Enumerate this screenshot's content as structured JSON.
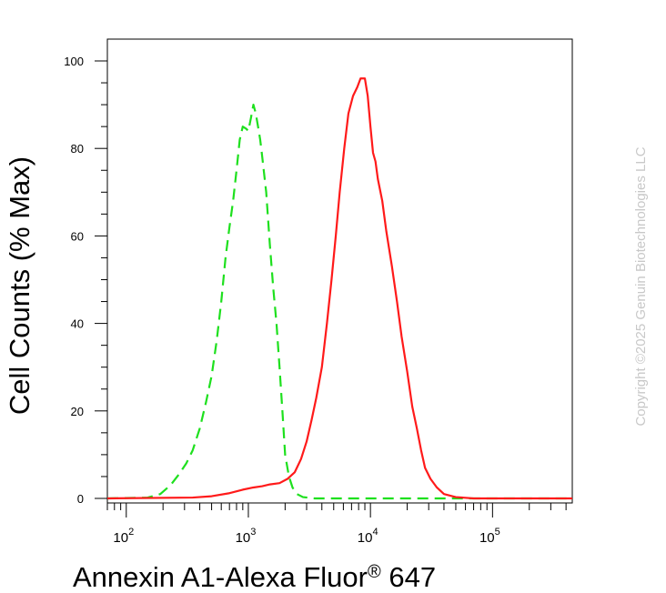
{
  "watermark": "Copyright ©2025 Genuin Biotechnologies LLC",
  "chart_data": {
    "type": "line",
    "xlabel": {
      "main": "Annexin A1-Alexa Fluor",
      "sup": "®",
      "tail": " 647"
    },
    "ylabel": "Cell Counts (% Max)",
    "x_scale": "log",
    "xlim": [
      70,
      450000
    ],
    "ylim": [
      0,
      100
    ],
    "yticks": [
      0,
      20,
      40,
      60,
      80,
      100
    ],
    "xticks": [
      {
        "value": 100,
        "base": "10",
        "exp": "2"
      },
      {
        "value": 1000,
        "base": "10",
        "exp": "3"
      },
      {
        "value": 10000,
        "base": "10",
        "exp": "4"
      },
      {
        "value": 100000,
        "base": "10",
        "exp": "5"
      }
    ],
    "grid": false,
    "series": [
      {
        "color": "#1ee01e",
        "style": "dashed",
        "points": [
          [
            70,
            0
          ],
          [
            150,
            0.2
          ],
          [
            190,
            1
          ],
          [
            230,
            3
          ],
          [
            270,
            5.5
          ],
          [
            310,
            8
          ],
          [
            350,
            11
          ],
          [
            400,
            16
          ],
          [
            450,
            22
          ],
          [
            500,
            28
          ],
          [
            550,
            36
          ],
          [
            600,
            45
          ],
          [
            650,
            55
          ],
          [
            700,
            62
          ],
          [
            750,
            68
          ],
          [
            800,
            75
          ],
          [
            850,
            82
          ],
          [
            900,
            85
          ],
          [
            960,
            84.5
          ],
          [
            1000,
            84
          ],
          [
            1050,
            87
          ],
          [
            1100,
            90
          ],
          [
            1150,
            88
          ],
          [
            1200,
            85
          ],
          [
            1250,
            82
          ],
          [
            1300,
            78
          ],
          [
            1400,
            70
          ],
          [
            1500,
            58
          ],
          [
            1600,
            48
          ],
          [
            1700,
            40
          ],
          [
            1800,
            30
          ],
          [
            1900,
            20
          ],
          [
            2000,
            10
          ],
          [
            2150,
            5
          ],
          [
            2300,
            2.5
          ],
          [
            2500,
            1
          ],
          [
            2800,
            0.3
          ],
          [
            3500,
            0
          ],
          [
            450000,
            0
          ]
        ]
      },
      {
        "color": "#ff1a1a",
        "style": "solid",
        "points": [
          [
            70,
            0
          ],
          [
            350,
            0.2
          ],
          [
            500,
            0.5
          ],
          [
            700,
            1.2
          ],
          [
            900,
            2
          ],
          [
            1100,
            2.5
          ],
          [
            1300,
            2.8
          ],
          [
            1500,
            3.2
          ],
          [
            1800,
            3.5
          ],
          [
            2100,
            4.5
          ],
          [
            2400,
            6
          ],
          [
            2700,
            9
          ],
          [
            3000,
            13
          ],
          [
            3300,
            18
          ],
          [
            3600,
            23
          ],
          [
            4000,
            30
          ],
          [
            4400,
            40
          ],
          [
            4800,
            50
          ],
          [
            5200,
            60
          ],
          [
            5600,
            70
          ],
          [
            6100,
            80
          ],
          [
            6600,
            88
          ],
          [
            7200,
            92
          ],
          [
            7800,
            94
          ],
          [
            8300,
            96
          ],
          [
            9000,
            96
          ],
          [
            9500,
            92
          ],
          [
            10000,
            85
          ],
          [
            10500,
            79
          ],
          [
            11000,
            77
          ],
          [
            11500,
            73
          ],
          [
            12500,
            68
          ],
          [
            13500,
            61
          ],
          [
            15000,
            53
          ],
          [
            16500,
            45
          ],
          [
            18000,
            37
          ],
          [
            20000,
            29
          ],
          [
            22000,
            21
          ],
          [
            24000,
            16
          ],
          [
            26000,
            11
          ],
          [
            28000,
            7
          ],
          [
            31000,
            4.5
          ],
          [
            35000,
            2.5
          ],
          [
            40000,
            1
          ],
          [
            50000,
            0.3
          ],
          [
            70000,
            0
          ],
          [
            450000,
            0
          ]
        ]
      }
    ]
  }
}
